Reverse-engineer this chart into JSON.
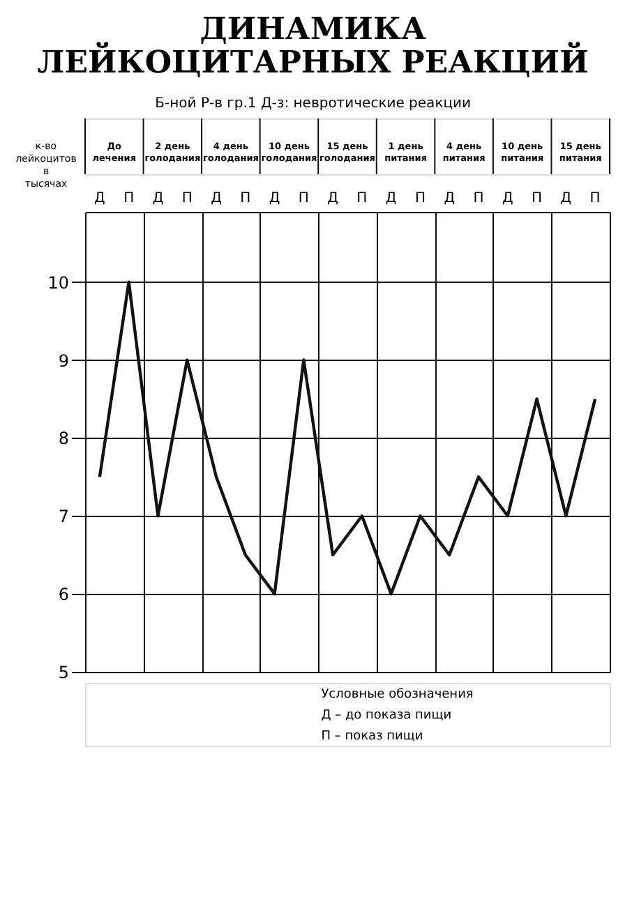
{
  "chart_data": {
    "type": "line",
    "title": "ДИНАМИКА ЛЕЙКОЦИТАРНЫХ РЕАКЦИЙ",
    "subtitle": "Б-ной Р-в гр.1        Д-з: невротические реакции",
    "ylabel": "к-во лейкоцитов в тысячах",
    "categories": [
      "Д",
      "П",
      "Д",
      "П",
      "Д",
      "П",
      "Д",
      "П",
      "Д",
      "П",
      "Д",
      "П",
      "Д",
      "П",
      "Д",
      "П",
      "Д",
      "П"
    ],
    "series": [
      {
        "color": "#111111",
        "values": [
          7.5,
          10,
          7,
          9,
          7.5,
          6.5,
          6,
          9,
          6.5,
          7,
          6,
          7,
          6.5,
          7.5,
          7,
          8.5,
          7,
          8.5
        ]
      }
    ],
    "annotations": [
      "До лечения",
      "2 день голодания",
      "4 день голодания",
      "10 день голодания",
      "15 день голодания",
      "1 день питания",
      "4 день питания",
      "10 день питания",
      "15 день питания",
      "Условные обозначения",
      "Д – до показа пищи",
      "П – показ пищи"
    ],
    "ylim": [
      5,
      10.9
    ],
    "yticks": [
      5,
      6,
      7,
      8,
      9,
      10
    ],
    "grid": true,
    "marker": "none",
    "line_style": "solid"
  }
}
